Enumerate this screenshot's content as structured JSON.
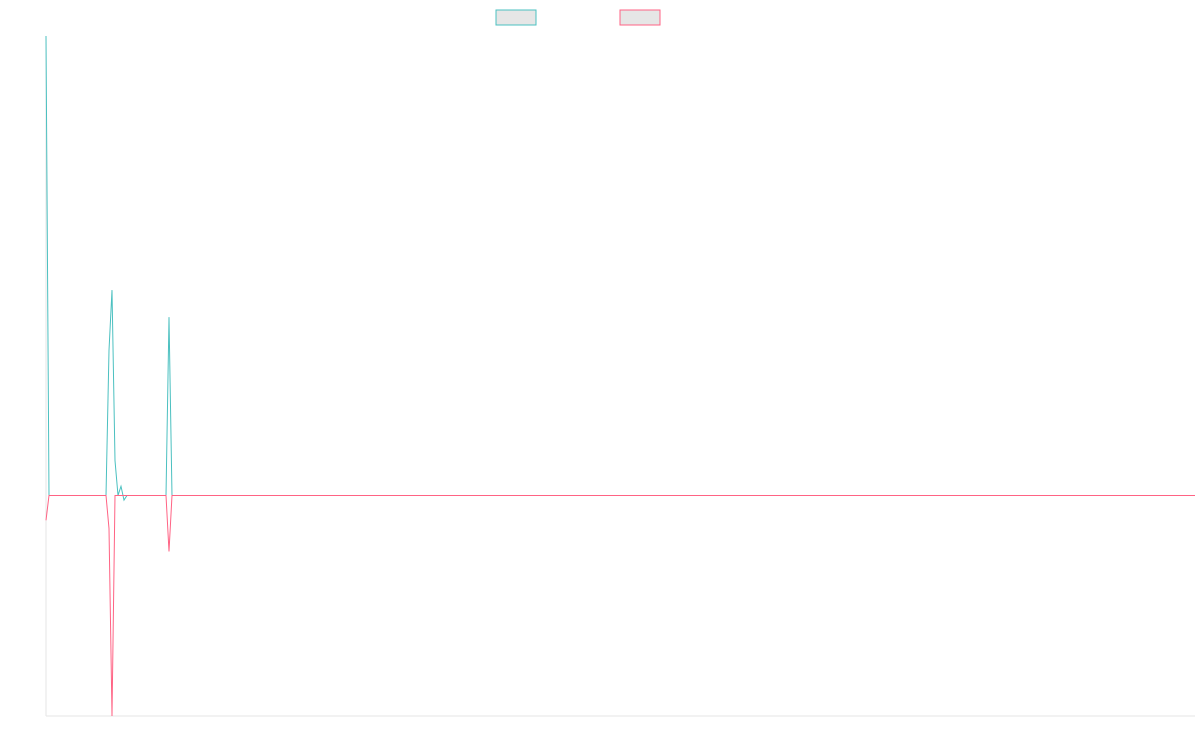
{
  "chart_data": {
    "type": "line",
    "x": [
      0,
      1,
      20,
      21,
      22,
      23,
      24,
      25,
      26,
      27,
      40,
      41,
      42,
      383
    ],
    "xlim": [
      0,
      383
    ],
    "ylim": [
      -0.48,
      1
    ],
    "legend": "top",
    "series": [
      {
        "color": "#4bc0c0",
        "values": [
          1,
          0,
          0,
          0.316,
          0.447,
          0.076,
          0,
          0.02,
          -0.01,
          0,
          0,
          0.388,
          0,
          0
        ]
      },
      {
        "color": "#ff6384",
        "values": [
          -0.054,
          0,
          0,
          -0.072,
          -0.48,
          0,
          0,
          0,
          0,
          0,
          0,
          -0.122,
          0,
          0
        ]
      }
    ]
  }
}
